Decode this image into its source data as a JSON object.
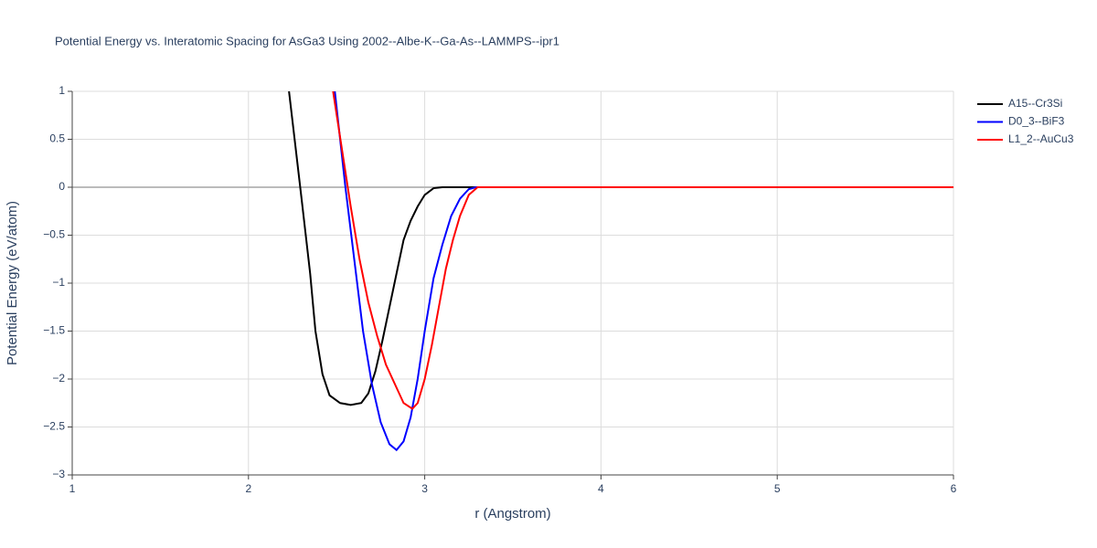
{
  "chart_data": {
    "type": "line",
    "title": "Potential Energy vs. Interatomic Spacing for AsGa3 Using 2002--Albe-K--Ga-As--LAMMPS--ipr1",
    "x_label": "r (Angstrom)",
    "y_label": "Potential Energy (eV/atom)",
    "xlim": [
      1,
      6
    ],
    "xticks": [
      1,
      2,
      3,
      4,
      5,
      6
    ],
    "ylim": [
      -3,
      1
    ],
    "yticks": [
      {
        "value": -3,
        "label": "−3"
      },
      {
        "value": -2.5,
        "label": "−2.5"
      },
      {
        "value": -2,
        "label": "−2"
      },
      {
        "value": -1.5,
        "label": "−1.5"
      },
      {
        "value": -1,
        "label": "−1"
      },
      {
        "value": -0.5,
        "label": "−0.5"
      },
      0,
      0.5,
      1
    ],
    "grid": true,
    "legend": "outside-right",
    "series": [
      {
        "name": "A15--Cr3Si",
        "color": "#000000",
        "x": [
          2.23,
          2.3,
          2.35,
          2.38,
          2.42,
          2.46,
          2.52,
          2.58,
          2.64,
          2.68,
          2.72,
          2.76,
          2.8,
          2.84,
          2.88,
          2.92,
          2.96,
          3.0,
          3.05,
          3.1,
          3.3,
          6
        ],
        "values": [
          1.0,
          -0.1,
          -0.9,
          -1.5,
          -1.95,
          -2.17,
          -2.25,
          -2.27,
          -2.25,
          -2.15,
          -1.92,
          -1.6,
          -1.25,
          -0.9,
          -0.55,
          -0.35,
          -0.2,
          -0.08,
          -0.01,
          0,
          0,
          0
        ]
      },
      {
        "name": "D0_3--BiF3",
        "color": "#0000ff",
        "x": [
          2.49,
          2.52,
          2.55,
          2.6,
          2.65,
          2.7,
          2.75,
          2.8,
          2.84,
          2.88,
          2.92,
          2.96,
          3.0,
          3.05,
          3.1,
          3.15,
          3.2,
          3.25,
          3.29,
          6
        ],
        "values": [
          1.0,
          0.5,
          0,
          -0.75,
          -1.5,
          -2.05,
          -2.45,
          -2.68,
          -2.74,
          -2.65,
          -2.4,
          -2.0,
          -1.5,
          -0.95,
          -0.6,
          -0.3,
          -0.12,
          -0.02,
          0,
          0
        ]
      },
      {
        "name": "L1_2--AuCu3",
        "color": "#ff0000",
        "x": [
          2.48,
          2.53,
          2.58,
          2.63,
          2.68,
          2.73,
          2.78,
          2.83,
          2.88,
          2.93,
          2.96,
          3.0,
          3.04,
          3.08,
          3.12,
          3.16,
          3.2,
          3.25,
          3.3,
          6
        ],
        "values": [
          1.0,
          0.4,
          -0.2,
          -0.75,
          -1.2,
          -1.55,
          -1.85,
          -2.05,
          -2.25,
          -2.31,
          -2.25,
          -2.0,
          -1.65,
          -1.25,
          -0.85,
          -0.55,
          -0.3,
          -0.08,
          0,
          0
        ]
      }
    ]
  }
}
